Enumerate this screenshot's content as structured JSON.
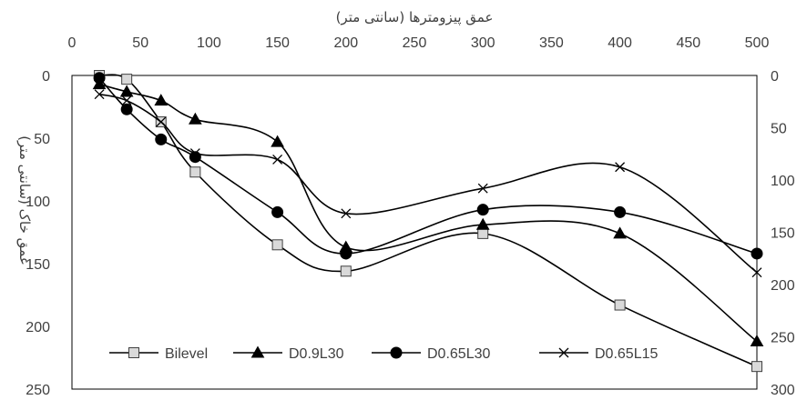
{
  "chart_data": {
    "type": "line",
    "title": "",
    "xlabel": "عمق پیزومترها (سانتی متر)",
    "ylabel": "عمق خاک (سانتی متر)",
    "x_ticks": [
      0,
      50,
      100,
      150,
      200,
      250,
      300,
      350,
      400,
      450,
      500
    ],
    "xlim": [
      0,
      500
    ],
    "x_axis_position": "top",
    "y_left_ticks": [
      0,
      50,
      100,
      150,
      200,
      250
    ],
    "ylim_left": [
      0,
      250
    ],
    "y_right_ticks": [
      0,
      50,
      100,
      150,
      200,
      250,
      300
    ],
    "ylim_right": [
      0,
      300
    ],
    "y_inverted": true,
    "smoothed": true,
    "grid": false,
    "legend_position": "bottom-inside",
    "series": [
      {
        "name": "Bilevel",
        "marker": "square",
        "color": "#000000",
        "marker_fill": "#d9d9d9",
        "x": [
          20,
          40,
          65,
          90,
          150,
          200,
          300,
          400,
          500
        ],
        "y": [
          0,
          3,
          37,
          77,
          135,
          156,
          126,
          183,
          232
        ]
      },
      {
        "name": "D0.9L30",
        "marker": "triangle",
        "color": "#000000",
        "marker_fill": "#000000",
        "x": [
          20,
          40,
          65,
          90,
          150,
          200,
          300,
          400,
          500
        ],
        "y": [
          7,
          13,
          20,
          35,
          53,
          137,
          119,
          126,
          212
        ]
      },
      {
        "name": "D0.65L30",
        "marker": "circle",
        "color": "#000000",
        "marker_fill": "#000000",
        "x": [
          20,
          40,
          65,
          90,
          150,
          200,
          300,
          400,
          500
        ],
        "y": [
          2,
          27,
          51,
          65,
          109,
          142,
          107,
          109,
          142
        ]
      },
      {
        "name": "D0.65L15",
        "marker": "x",
        "color": "#000000",
        "marker_fill": "none",
        "x": [
          20,
          40,
          65,
          90,
          150,
          200,
          300,
          400,
          500
        ],
        "y": [
          15,
          20,
          37,
          62,
          67,
          110,
          90,
          73,
          157
        ]
      }
    ]
  }
}
